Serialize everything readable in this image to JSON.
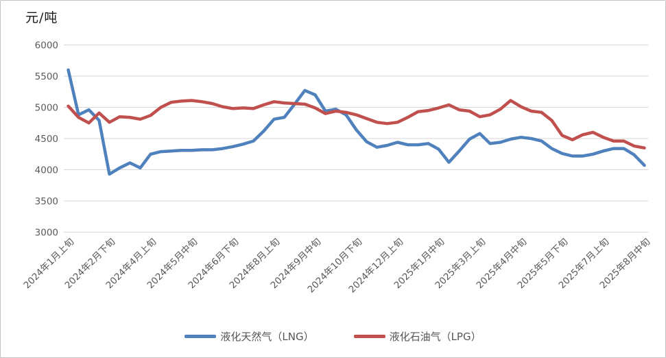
{
  "chart_data": {
    "type": "line",
    "title": "",
    "ylabel": "元/吨",
    "xlabel": "",
    "ylim": [
      3000,
      6000
    ],
    "y_ticks": [
      6000,
      5500,
      5000,
      4500,
      4000,
      3500,
      3000
    ],
    "grid": true,
    "legend_position": "bottom",
    "x_tick_interval": 4,
    "x_tick_labels": [
      "2024年1月上旬",
      "2024年2月下旬",
      "2024年4月上旬",
      "2024年5月中旬",
      "2024年6月下旬",
      "2024年8月上旬",
      "2024年9月中旬",
      "2024年10月下旬",
      "2024年12月上旬",
      "2025年1月中旬",
      "2025年3月上旬",
      "2025年4月中旬",
      "2025年5月下旬",
      "2025年7月上旬",
      "2025年8月中旬"
    ],
    "series": [
      {
        "name": "液化天然气（LNG）",
        "color": "#4F81BD",
        "values": [
          5600,
          4880,
          4960,
          4790,
          3930,
          4030,
          4110,
          4030,
          4250,
          4290,
          4300,
          4310,
          4310,
          4320,
          4320,
          4340,
          4370,
          4410,
          4460,
          4620,
          4810,
          4840,
          5050,
          5270,
          5200,
          4940,
          4970,
          4880,
          4640,
          4450,
          4360,
          4390,
          4440,
          4400,
          4400,
          4420,
          4330,
          4120,
          4300,
          4490,
          4580,
          4420,
          4440,
          4490,
          4520,
          4500,
          4460,
          4340,
          4260,
          4220,
          4220,
          4250,
          4300,
          4340,
          4340,
          4240,
          4070
        ]
      },
      {
        "name": "液化石油气（LPG）",
        "color": "#C0504D",
        "values": [
          5020,
          4840,
          4750,
          4910,
          4760,
          4850,
          4840,
          4810,
          4870,
          5000,
          5080,
          5100,
          5110,
          5090,
          5060,
          5010,
          4980,
          4990,
          4980,
          5040,
          5090,
          5070,
          5060,
          5050,
          4990,
          4900,
          4940,
          4920,
          4880,
          4820,
          4760,
          4740,
          4760,
          4840,
          4930,
          4950,
          4990,
          5040,
          4960,
          4940,
          4850,
          4880,
          4970,
          5110,
          5010,
          4940,
          4920,
          4790,
          4550,
          4480,
          4560,
          4600,
          4520,
          4460,
          4460,
          4380,
          4350
        ]
      }
    ],
    "colors": {
      "gridline": "#D6D6D6",
      "tick_label": "#595959",
      "axis_title": "#1a1a1a"
    }
  }
}
